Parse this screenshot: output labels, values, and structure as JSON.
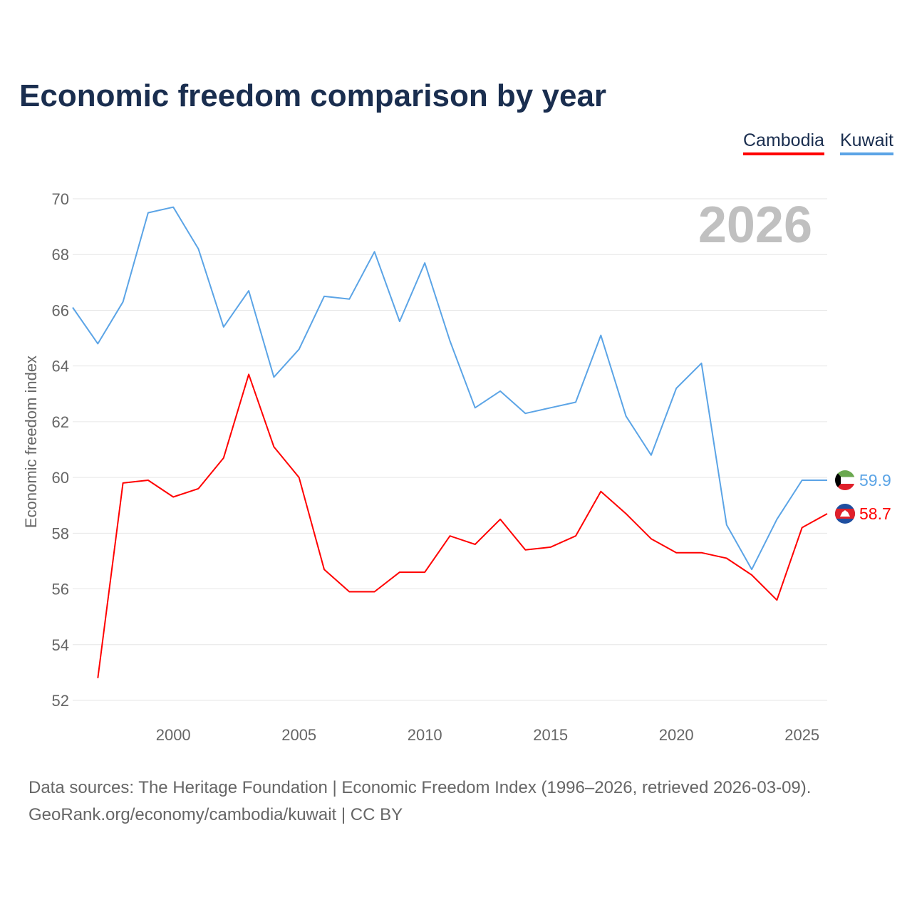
{
  "title": "Economic freedom comparison by year",
  "watermark_year": "2026",
  "footer": {
    "line1": "Data sources: The Heritage Foundation | Economic Freedom Index (1996–2026, retrieved 2026-03-09).",
    "line2": "GeoRank.org/economy/cambodia/kuwait | CC BY"
  },
  "chart_data": {
    "type": "line",
    "title": "Economic freedom comparison by year",
    "xlabel": "",
    "ylabel": "Economic freedom index",
    "xlim": [
      1996,
      2026
    ],
    "ylim": [
      52,
      70
    ],
    "xticks": [
      "2000",
      "2005",
      "2010",
      "2015",
      "2020",
      "2025"
    ],
    "yticks": [
      "52",
      "54",
      "56",
      "58",
      "60",
      "62",
      "64",
      "66",
      "68",
      "70"
    ],
    "grid": true,
    "legend_placement": "top-right",
    "x": [
      1996,
      1997,
      1998,
      1999,
      2000,
      2001,
      2002,
      2003,
      2004,
      2005,
      2006,
      2007,
      2008,
      2009,
      2010,
      2011,
      2012,
      2013,
      2014,
      2015,
      2016,
      2017,
      2018,
      2019,
      2020,
      2021,
      2022,
      2023,
      2024,
      2025,
      2026
    ],
    "series": [
      {
        "name": "Cambodia",
        "color": "#ff0000",
        "end_label": "58.7",
        "flag": "cambodia-flag-icon",
        "values": [
          null,
          52.8,
          59.8,
          59.9,
          59.3,
          59.6,
          60.7,
          63.7,
          61.1,
          60.0,
          56.7,
          55.9,
          55.9,
          56.6,
          56.6,
          57.9,
          57.6,
          58.5,
          57.4,
          57.5,
          57.9,
          59.5,
          58.7,
          57.8,
          57.3,
          57.3,
          57.1,
          56.5,
          55.6,
          58.2,
          58.7
        ]
      },
      {
        "name": "Kuwait",
        "color": "#5ba4e6",
        "end_label": "59.9",
        "flag": "kuwait-flag-icon",
        "values": [
          66.1,
          64.8,
          66.3,
          69.5,
          69.7,
          68.2,
          65.4,
          66.7,
          63.6,
          64.6,
          66.5,
          66.4,
          68.1,
          65.6,
          67.7,
          64.9,
          62.5,
          63.1,
          62.3,
          62.5,
          62.7,
          65.1,
          62.2,
          60.8,
          63.2,
          64.1,
          58.3,
          56.7,
          58.5,
          59.9,
          59.9
        ]
      }
    ]
  }
}
